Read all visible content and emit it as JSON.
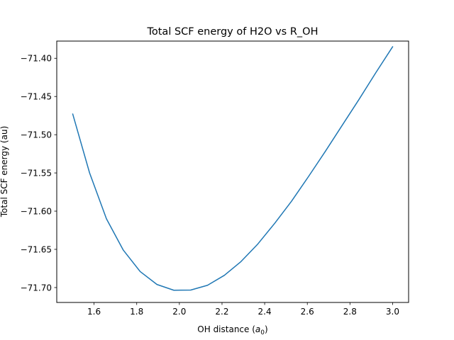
{
  "chart_data": {
    "type": "line",
    "title": "Total SCF energy of H2O vs R_OH",
    "xlabel_main": "OH distance (",
    "xlabel_symbol": "a",
    "xlabel_sub": "0",
    "xlabel_close": ")",
    "ylabel": "Total SCF energy (au)",
    "xlim": [
      1.425,
      3.075
    ],
    "ylim": [
      -71.7195,
      -71.3775
    ],
    "xticks": [
      1.6,
      1.8,
      2.0,
      2.2,
      2.4,
      2.6,
      2.8,
      3.0
    ],
    "xtick_labels": [
      "1.6",
      "1.8",
      "2.0",
      "2.2",
      "2.4",
      "2.6",
      "2.8",
      "3.0"
    ],
    "yticks": [
      -71.4,
      -71.45,
      -71.5,
      -71.55,
      -71.6,
      -71.65,
      -71.7
    ],
    "ytick_labels": [
      "−71.40",
      "−71.45",
      "−71.50",
      "−71.55",
      "−71.60",
      "−71.65",
      "−71.70"
    ],
    "grid": false,
    "series": [
      {
        "color": "#1f77b4",
        "x": [
          1.5,
          1.579,
          1.658,
          1.737,
          1.816,
          1.895,
          1.974,
          2.053,
          2.132,
          2.211,
          2.289,
          2.368,
          2.447,
          2.526,
          2.605,
          2.684,
          2.763,
          2.842,
          2.921,
          3.0
        ],
        "y": [
          -71.473,
          -71.55,
          -71.61,
          -71.651,
          -71.679,
          -71.696,
          -71.7035,
          -71.7033,
          -71.697,
          -71.684,
          -71.666,
          -71.643,
          -71.616,
          -71.587,
          -71.555,
          -71.522,
          -71.488,
          -71.454,
          -71.419,
          -71.385
        ]
      }
    ]
  }
}
